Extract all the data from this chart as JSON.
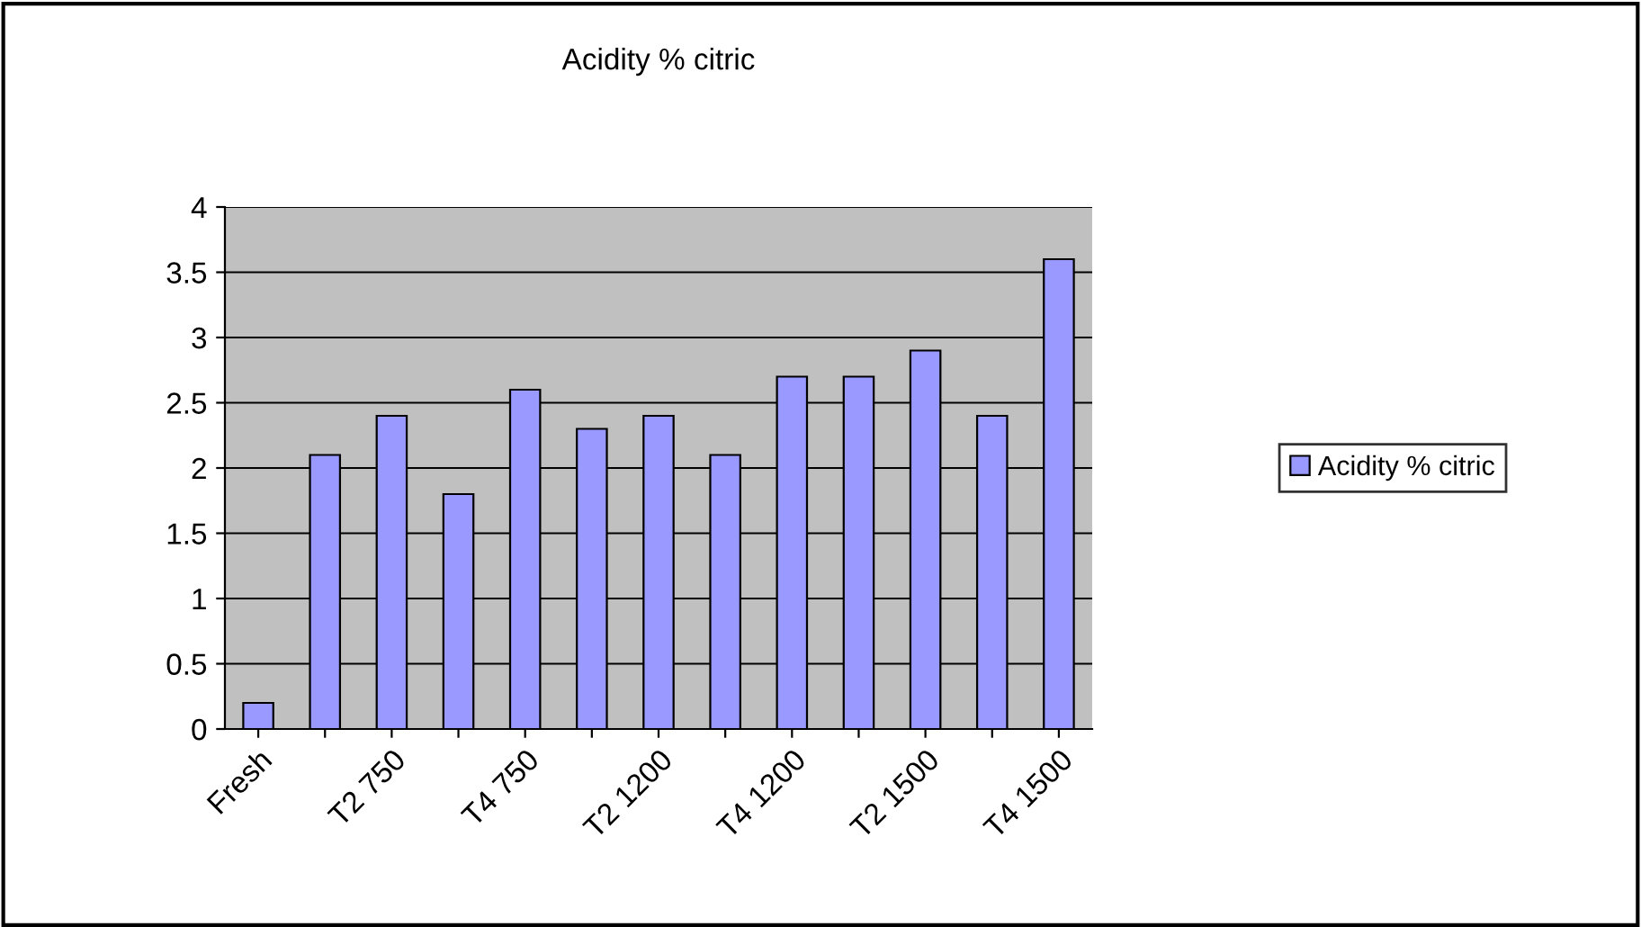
{
  "chart_data": {
    "type": "bar",
    "title": "Acidity % citric",
    "categories": [
      "Fresh",
      null,
      "T2 750",
      null,
      "T4 750",
      null,
      "T2 1200",
      null,
      "T4 1200",
      null,
      "T2 1500",
      null,
      "T4 1500"
    ],
    "series": [
      {
        "name": "Acidity % citric",
        "color": "#9999ff",
        "values": [
          0.2,
          2.1,
          2.4,
          1.8,
          2.6,
          2.3,
          2.4,
          2.1,
          2.7,
          2.7,
          2.9,
          2.4,
          3.6
        ]
      }
    ],
    "ylim": [
      0,
      4
    ],
    "yticks": [
      0,
      0.5,
      1,
      1.5,
      2,
      2.5,
      3,
      3.5,
      4
    ],
    "grid": "y",
    "legend": "right"
  }
}
